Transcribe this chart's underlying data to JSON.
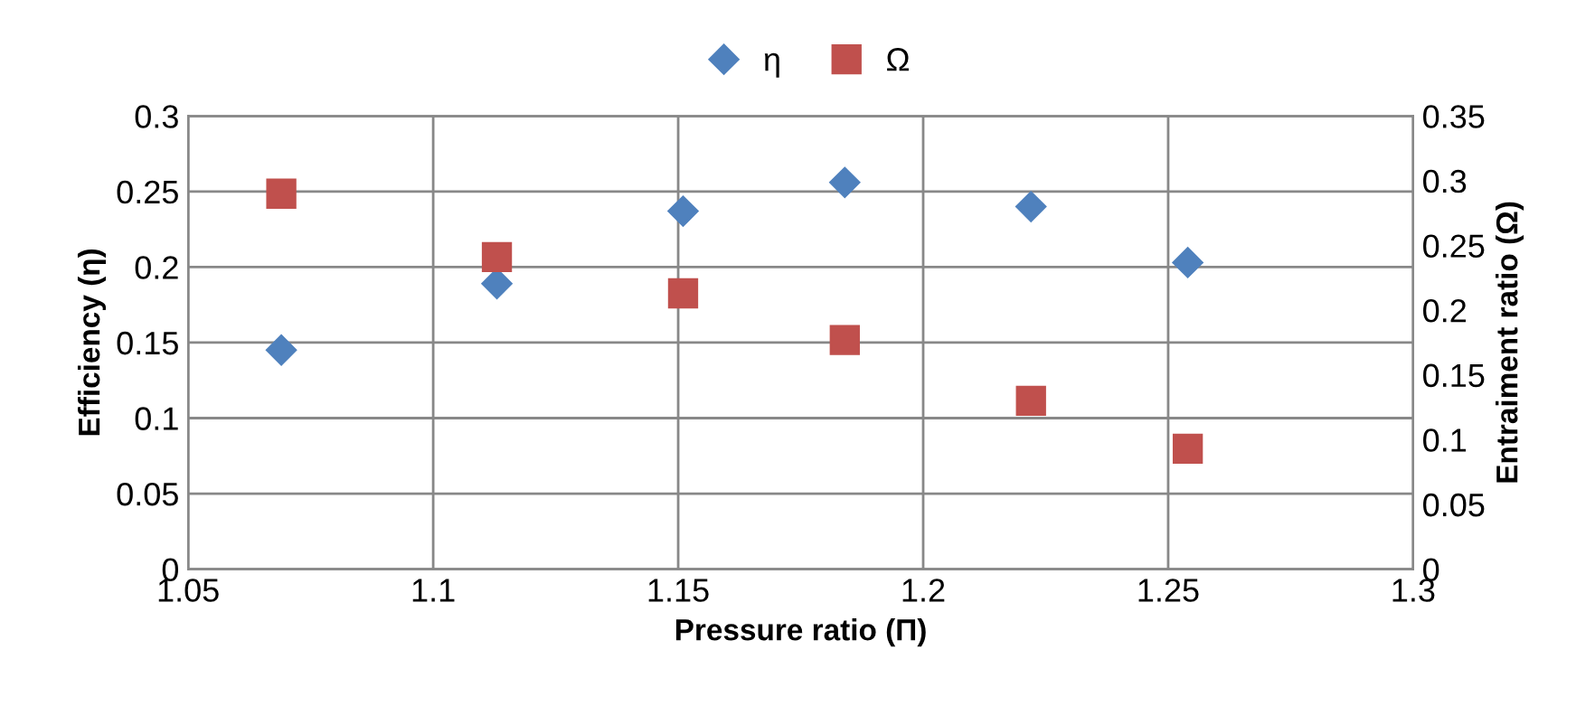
{
  "chart_data": {
    "type": "scatter",
    "xlabel": "Pressure ratio (Π)",
    "ylabel": "Efficiency (η)",
    "y2label": "Entraiment ratio (Ω)",
    "series": [
      {
        "name": "η",
        "color": "#4f81bd",
        "marker": "diamond",
        "x": [
          1.069,
          1.113,
          1.151,
          1.184,
          1.222,
          1.254
        ],
        "values": [
          0.145,
          0.189,
          0.237,
          0.256,
          0.24,
          0.203
        ]
      },
      {
        "name": "Ω",
        "color": "#c0504d",
        "marker": "square",
        "axis": "y2",
        "x": [
          1.069,
          1.113,
          1.151,
          1.184,
          1.222,
          1.254
        ],
        "values": [
          0.29,
          0.241,
          0.213,
          0.177,
          0.13,
          0.093
        ]
      }
    ],
    "xlim": [
      1.05,
      1.3
    ],
    "xticks": [
      1.05,
      1.1,
      1.15,
      1.2,
      1.25,
      1.3
    ],
    "ylim": [
      0,
      0.3
    ],
    "yticks": [
      0,
      0.05,
      0.1,
      0.15,
      0.2,
      0.25,
      0.3
    ],
    "y2lim": [
      0,
      0.35
    ],
    "y2ticks": [
      0,
      0.05,
      0.1,
      0.15,
      0.2,
      0.25,
      0.3,
      0.35
    ],
    "grid": true,
    "legend": "top"
  }
}
